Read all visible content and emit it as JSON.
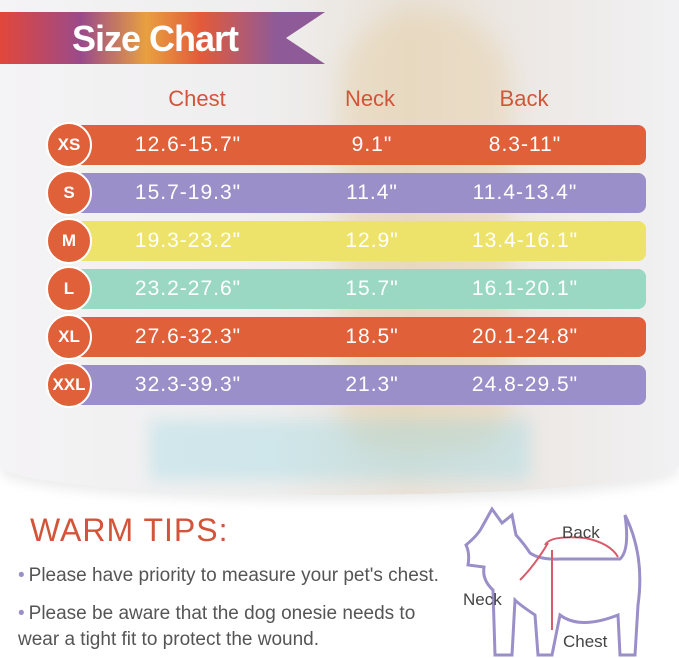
{
  "title": "Size Chart",
  "columns": [
    "Chest",
    "Neck",
    "Back"
  ],
  "rows": [
    {
      "size": "XS",
      "chest": "12.6-15.7\"",
      "neck": "9.1\"",
      "back": "8.3-11\"",
      "color": "#e0603a"
    },
    {
      "size": "S",
      "chest": "15.7-19.3\"",
      "neck": "11.4\"",
      "back": "11.4-13.4\"",
      "color": "#9a8fc8"
    },
    {
      "size": "M",
      "chest": "19.3-23.2\"",
      "neck": "12.9\"",
      "back": "13.4-16.1\"",
      "color": "#eee36a"
    },
    {
      "size": "L",
      "chest": "23.2-27.6\"",
      "neck": "15.7\"",
      "back": "16.1-20.1\"",
      "color": "#9ad8c4"
    },
    {
      "size": "XL",
      "chest": "27.6-32.3\"",
      "neck": "18.5\"",
      "back": "20.1-24.8\"",
      "color": "#e0603a"
    },
    {
      "size": "XXL",
      "chest": "32.3-39.3\"",
      "neck": "21.3\"",
      "back": "24.8-29.5\"",
      "color": "#9a8fc8"
    }
  ],
  "tips": {
    "title": "WARM TIPS:",
    "items": [
      "Please have priority to measure your pet's chest.",
      "Please be aware that the dog onesie needs to wear a tight fit to protect the wound."
    ]
  },
  "diagram": {
    "back": "Back",
    "neck": "Neck",
    "chest": "Chest"
  }
}
